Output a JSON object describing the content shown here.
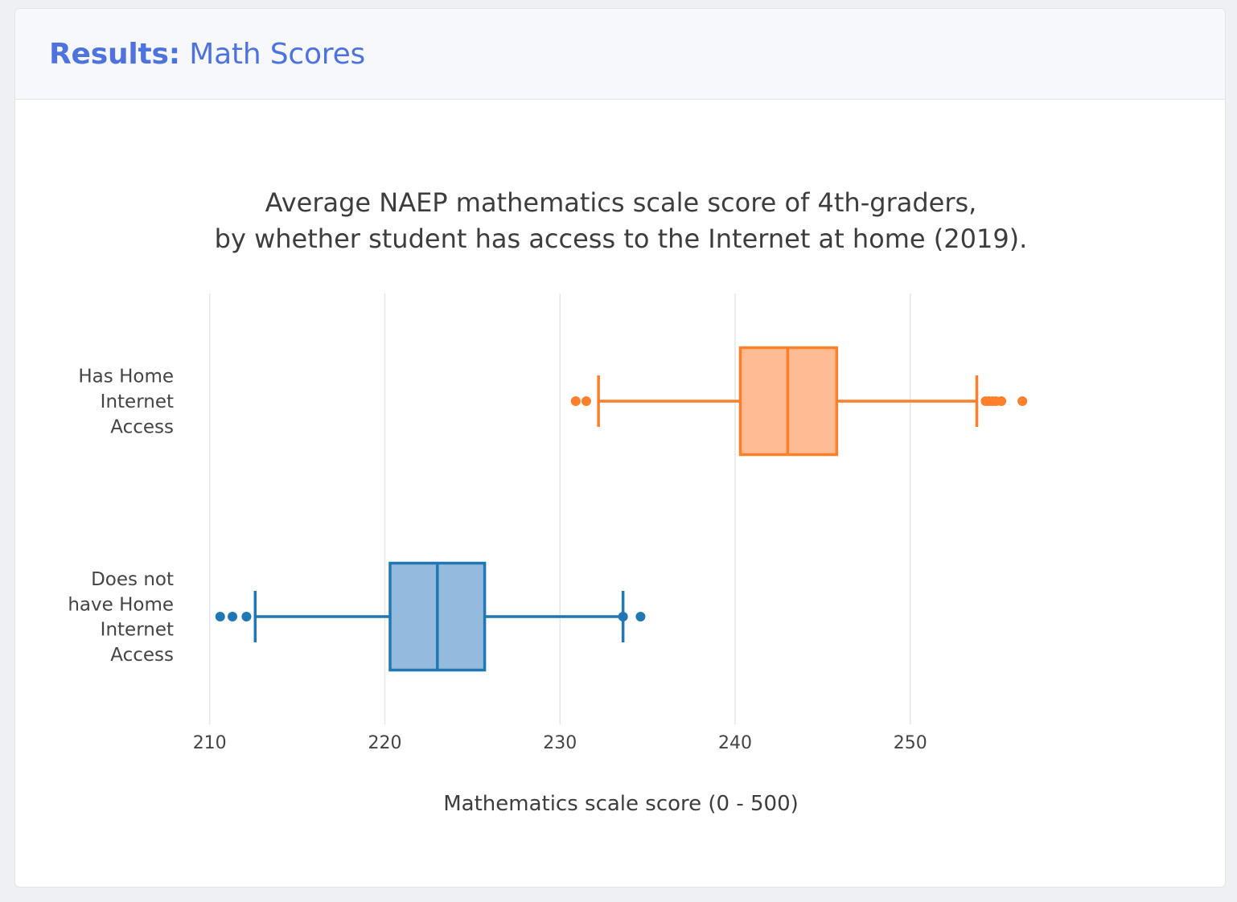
{
  "header": {
    "title_bold": "Results:",
    "title_rest": " Math Scores"
  },
  "chart_data": {
    "type": "box",
    "orientation": "horizontal",
    "title": [
      "Average NAEP mathematics scale score of 4th-graders,",
      "by whether student has access to the Internet at home (2019)."
    ],
    "xlabel": "Mathematics scale score (0 - 500)",
    "xlim": [
      206.8,
      262.5
    ],
    "xticks": [
      210,
      220,
      230,
      240,
      250
    ],
    "grid": true,
    "series": [
      {
        "label_lines": [
          "Has Home",
          "Internet",
          "Access"
        ],
        "color": "#ff7f2a",
        "fill": "#ffbb94",
        "q1": 240.3,
        "median": 243.0,
        "q3": 245.8,
        "whisker_low": 232.2,
        "whisker_high": 253.8,
        "outliers": [
          230.9,
          231.5,
          254.3,
          254.5,
          254.7,
          254.9,
          255.2,
          256.4
        ]
      },
      {
        "label_lines": [
          "Does not",
          "have Home",
          "Internet",
          "Access"
        ],
        "color": "#1f77b4",
        "fill": "#94bbdd",
        "q1": 220.3,
        "median": 223.0,
        "q3": 225.7,
        "whisker_low": 212.6,
        "whisker_high": 233.6,
        "outliers": [
          210.6,
          211.3,
          212.1,
          233.6,
          234.6
        ]
      }
    ]
  }
}
